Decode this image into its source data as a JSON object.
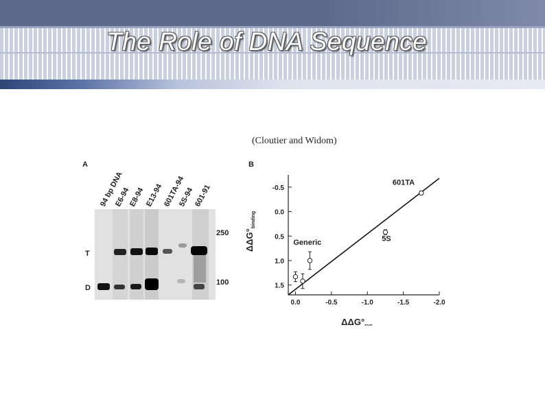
{
  "slide": {
    "title": "The Role of DNA Sequence",
    "citation": "(Cloutier and Widom)"
  },
  "panelA": {
    "label": "A",
    "lanes": [
      "94 bp DNA",
      "E6-94",
      "E8-94",
      "E13-94",
      "601TA-94",
      "5S-94",
      "601-91"
    ],
    "band_labels": [
      "T",
      "D"
    ],
    "size_markers": [
      "250",
      "100"
    ]
  },
  "chart_data": {
    "type": "scatter",
    "panel_label": "B",
    "xlabel": "ΔΔG°",
    "xlabel_sub": "cyc",
    "ylabel": "ΔΔG°",
    "ylabel_sub": "binding",
    "x_ticks": [
      "0.0",
      "-0.5",
      "-1.0",
      "-1.5",
      "-2.0"
    ],
    "y_ticks": [
      "-0.5",
      "0.0",
      "0.5",
      "1.0",
      "1.5"
    ],
    "x_values_ticks": [
      0.0,
      -0.5,
      -1.0,
      -1.5,
      -2.0
    ],
    "y_values_ticks": [
      -0.5,
      0.0,
      0.5,
      1.0,
      1.5
    ],
    "xlim": [
      0.1,
      -2.0
    ],
    "ylim": [
      -0.75,
      1.7
    ],
    "points": [
      {
        "x": 0.0,
        "y": 1.33,
        "err": 0.1
      },
      {
        "x": -0.1,
        "y": 1.42,
        "err": 0.15
      },
      {
        "x": -0.2,
        "y": 1.0,
        "err": 0.18
      },
      {
        "x": -1.25,
        "y": 0.42,
        "err": 0.05
      },
      {
        "x": -1.75,
        "y": -0.38,
        "err": 0.04
      }
    ],
    "fit_line": {
      "x": [
        0.1,
        -2.0
      ],
      "y": [
        1.7,
        -0.68
      ]
    },
    "annotations": [
      {
        "text": "601TA",
        "x": -1.35,
        "y": -0.55
      },
      {
        "text": "5S",
        "x": -1.2,
        "y": 0.6
      },
      {
        "text": "Generic",
        "x": 0.03,
        "y": 0.68
      }
    ]
  }
}
